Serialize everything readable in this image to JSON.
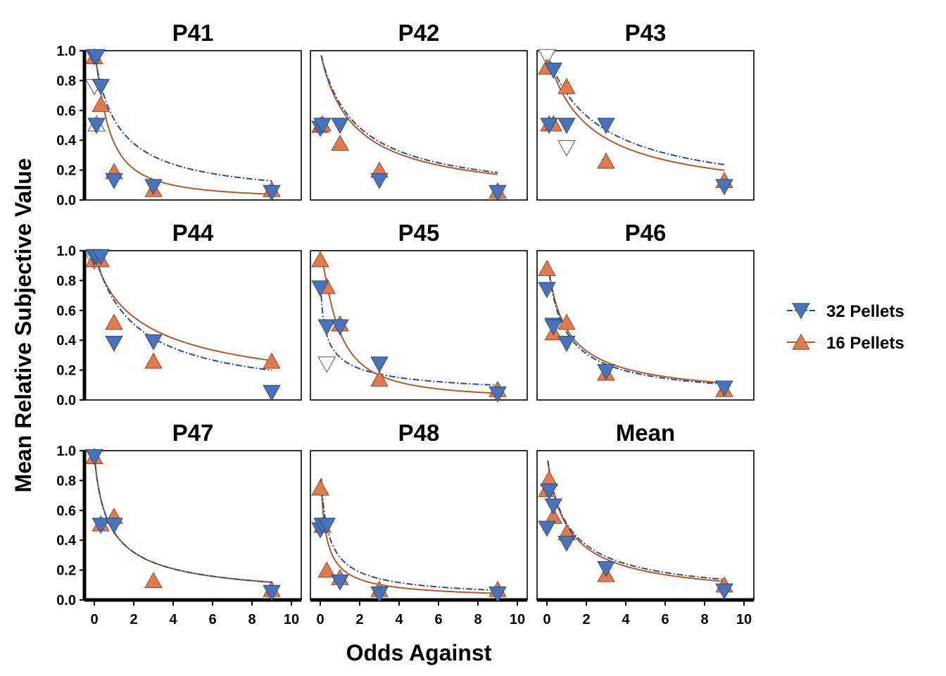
{
  "chart_data": {
    "type": "scatter",
    "xlabel": "Odds Against",
    "ylabel": "Mean Relative Subjective Value",
    "xlim": [
      -0.5,
      10.5
    ],
    "ylim": [
      0,
      1
    ],
    "x_ticks": [
      0,
      2,
      4,
      6,
      8,
      10
    ],
    "y_ticks": [
      "0.0",
      "0.2",
      "0.4",
      "0.6",
      "0.8",
      "1.0"
    ],
    "legend": {
      "placement": "right",
      "items": [
        {
          "label": "32 Pellets",
          "color": "#4a72b8",
          "marker": "triangle-down",
          "line": "dashdot",
          "line_color": "#2f4d7e"
        },
        {
          "label": "16 Pellets",
          "color": "#df7b4f",
          "marker": "triangle-up",
          "line": "solid",
          "line_color": "#b05a2c"
        }
      ]
    },
    "panels": [
      {
        "title": "P41",
        "fit": {
          "p32": {
            "a": 0.85,
            "h": 1.0
          },
          "p16": {
            "a": 1.6,
            "h": 1.5
          }
        },
        "p32": [
          [
            0,
            0.96
          ],
          [
            0.11,
            0.96
          ],
          [
            0.33,
            0.76
          ],
          [
            0.11,
            0.5
          ],
          [
            1,
            0.13
          ],
          [
            3,
            0.09
          ],
          [
            9,
            0.05
          ]
        ],
        "p32_open": [
          [
            0,
            0.76
          ]
        ],
        "p16": [
          [
            0,
            0.96
          ],
          [
            0.33,
            0.64
          ],
          [
            1,
            0.19
          ],
          [
            3,
            0.07
          ],
          [
            9,
            0.07
          ]
        ],
        "p16_open": [
          [
            0.11,
            0.51
          ]
        ]
      },
      {
        "title": "P42",
        "fit": {
          "p32": {
            "a": 0.55,
            "h": 1.0
          },
          "p16": {
            "a": 0.6,
            "h": 1.0
          }
        },
        "p32": [
          [
            0,
            0.48
          ],
          [
            0.11,
            0.5
          ],
          [
            1,
            0.5
          ],
          [
            3,
            0.13
          ],
          [
            9,
            0.05
          ]
        ],
        "p32_open": [],
        "p16": [
          [
            0,
            0.5
          ],
          [
            0.11,
            0.51
          ],
          [
            1,
            0.38
          ],
          [
            3,
            0.2
          ],
          [
            9,
            0.06
          ]
        ],
        "p16_open": []
      },
      {
        "title": "P43",
        "fit": {
          "p32": {
            "a": 0.4,
            "h": 1.0
          },
          "p16": {
            "a": 0.5,
            "h": 1.0
          }
        },
        "p32": [
          [
            0.11,
            0.5
          ],
          [
            0.33,
            0.87
          ],
          [
            1,
            0.5
          ],
          [
            3,
            0.5
          ],
          [
            9,
            0.09
          ]
        ],
        "p32_open": [
          [
            0,
            0.96
          ],
          [
            1,
            0.35
          ]
        ],
        "p16": [
          [
            0,
            0.89
          ],
          [
            0.11,
            0.51
          ],
          [
            0.33,
            0.51
          ],
          [
            1,
            0.76
          ],
          [
            3,
            0.26
          ],
          [
            9,
            0.13
          ]
        ],
        "p16_open": []
      },
      {
        "title": "P44",
        "fit": {
          "p32": {
            "a": 0.5,
            "h": 1.0
          },
          "p16": {
            "a": 0.45,
            "h": 0.8
          }
        },
        "p32": [
          [
            0,
            0.96
          ],
          [
            0.11,
            0.96
          ],
          [
            0.33,
            0.96
          ],
          [
            1,
            0.38
          ],
          [
            3,
            0.39
          ],
          [
            9,
            0.05
          ]
        ],
        "p32_open": [
          [
            0,
            0.93
          ]
        ],
        "p16": [
          [
            0,
            0.94
          ],
          [
            0.33,
            0.94
          ],
          [
            1,
            0.52
          ],
          [
            3,
            0.26
          ],
          [
            9,
            0.26
          ]
        ],
        "p16_open": []
      },
      {
        "title": "P45",
        "fit": {
          "p32": {
            "a": 2.5,
            "h": 0.4
          },
          "p16": {
            "a": 1.2,
            "h": 1.6
          }
        },
        "p32": [
          [
            0,
            0.75
          ],
          [
            0.33,
            0.49
          ],
          [
            1,
            0.49
          ],
          [
            3,
            0.24
          ],
          [
            9,
            0.04
          ]
        ],
        "p32_open": [
          [
            0.33,
            0.24
          ]
        ],
        "p16": [
          [
            0,
            0.94
          ],
          [
            0.33,
            0.76
          ],
          [
            1,
            0.51
          ],
          [
            3,
            0.14
          ],
          [
            9,
            0.07
          ]
        ],
        "p16_open": []
      },
      {
        "title": "P46",
        "fit": {
          "p32": {
            "a": 1.2,
            "h": 0.9
          },
          "p16": {
            "a": 1.1,
            "h": 0.9
          }
        },
        "p32": [
          [
            0,
            0.74
          ],
          [
            0.33,
            0.5
          ],
          [
            0.33,
            0.49
          ],
          [
            1,
            0.38
          ],
          [
            3,
            0.19
          ],
          [
            9,
            0.08
          ]
        ],
        "p32_open": [],
        "p16": [
          [
            0,
            0.88
          ],
          [
            0.33,
            0.45
          ],
          [
            1,
            0.52
          ],
          [
            3,
            0.18
          ],
          [
            9,
            0.07
          ]
        ],
        "p16_open": []
      },
      {
        "title": "P47",
        "fit": {
          "p32": {
            "a": 1.2,
            "h": 0.8
          },
          "p16": {
            "a": 1.2,
            "h": 0.8
          }
        },
        "p32": [
          [
            0,
            0.96
          ],
          [
            0.33,
            0.5
          ],
          [
            1,
            0.5
          ],
          [
            9,
            0.05
          ]
        ],
        "p32_open": [],
        "p16": [
          [
            0,
            0.96
          ],
          [
            0.33,
            0.51
          ],
          [
            1,
            0.56
          ],
          [
            3,
            0.13
          ],
          [
            9,
            0.07
          ]
        ],
        "p16_open": []
      },
      {
        "title": "P48",
        "fit": {
          "p32": {
            "a": 2.5,
            "h": 0.75
          },
          "p16": {
            "a": 3.5,
            "h": 0.8
          }
        },
        "p32": [
          [
            0,
            0.47
          ],
          [
            0.11,
            0.5
          ],
          [
            0.33,
            0.5
          ],
          [
            1,
            0.12
          ],
          [
            3,
            0.04
          ],
          [
            9,
            0.04
          ]
        ],
        "p32_open": [],
        "p16": [
          [
            0,
            0.75
          ],
          [
            0.11,
            0.5
          ],
          [
            0.33,
            0.2
          ],
          [
            1,
            0.15
          ],
          [
            3,
            0.07
          ],
          [
            9,
            0.07
          ]
        ],
        "p16_open": []
      },
      {
        "title": "Mean",
        "fit": {
          "p32": {
            "a": 0.95,
            "h": 0.85
          },
          "p16": {
            "a": 1.0,
            "h": 0.9
          }
        },
        "p32": [
          [
            0,
            0.48
          ],
          [
            0.11,
            0.73
          ],
          [
            0.33,
            0.63
          ],
          [
            1,
            0.38
          ],
          [
            3,
            0.21
          ],
          [
            9,
            0.06
          ]
        ],
        "p32_open": [],
        "p16": [
          [
            0,
            0.74
          ],
          [
            0.11,
            0.81
          ],
          [
            0.33,
            0.56
          ],
          [
            1,
            0.45
          ],
          [
            3,
            0.17
          ],
          [
            9,
            0.1
          ]
        ],
        "p16_open": []
      }
    ]
  }
}
